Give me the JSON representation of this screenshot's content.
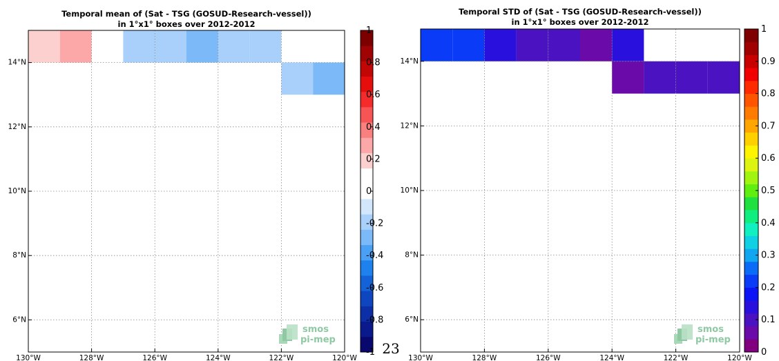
{
  "page_number": "23",
  "logo": {
    "line1": "smos",
    "line2": "pi-mep"
  },
  "chart_data": [
    {
      "type": "heatmap",
      "title_line1": "Temporal mean of (Sat - TSG (GOSUD-Research-vessel))",
      "title_line2": "in 1°x1° boxes over 2012-2012",
      "xlim": [
        -130,
        -120
      ],
      "ylim": [
        5,
        15
      ],
      "grid": true,
      "xticks": [
        {
          "value": -130,
          "label": "130°W"
        },
        {
          "value": -128,
          "label": "128°W"
        },
        {
          "value": -126,
          "label": "126°W"
        },
        {
          "value": -124,
          "label": "124°W"
        },
        {
          "value": -122,
          "label": "122°W"
        },
        {
          "value": -120,
          "label": "120°W"
        }
      ],
      "yticks": [
        {
          "value": 6,
          "label": "6°N"
        },
        {
          "value": 8,
          "label": "8°N"
        },
        {
          "value": 10,
          "label": "10°N"
        },
        {
          "value": 12,
          "label": "12°N"
        },
        {
          "value": 14,
          "label": "14°N"
        }
      ],
      "cells": [
        {
          "lon": -130,
          "lat": 14,
          "value": 0.15
        },
        {
          "lon": -129,
          "lat": 14,
          "value": 0.25
        },
        {
          "lon": -127,
          "lat": 14,
          "value": -0.15
        },
        {
          "lon": -126,
          "lat": 14,
          "value": -0.15
        },
        {
          "lon": -125,
          "lat": 14,
          "value": -0.25
        },
        {
          "lon": -124,
          "lat": 14,
          "value": -0.15
        },
        {
          "lon": -123,
          "lat": 14,
          "value": -0.15
        },
        {
          "lon": -122,
          "lat": 13,
          "value": -0.15
        },
        {
          "lon": -121,
          "lat": 13,
          "value": -0.25
        }
      ],
      "colorbar": {
        "range": [
          -1,
          1
        ],
        "ticks": [
          "-1",
          "-0.8",
          "-0.6",
          "-0.4",
          "-0.2",
          "0",
          "0.2",
          "0.4",
          "0.6",
          "0.8",
          "1"
        ],
        "levels": [
          "#08086e",
          "#0a1a8c",
          "#0c2fa8",
          "#0e46c0",
          "#1462d8",
          "#1e82ee",
          "#4aa0f5",
          "#7bb9f8",
          "#a9d0fb",
          "#d2e6fc",
          "#ffffff",
          "#ffffff",
          "#fdd0d0",
          "#fca8a8",
          "#fa7f7f",
          "#f75555",
          "#f52a2a",
          "#e60d0d",
          "#c20606",
          "#a00303",
          "#7d0000"
        ]
      }
    },
    {
      "type": "heatmap",
      "title_line1": "Temporal STD of (Sat - TSG (GOSUD-Research-vessel))",
      "title_line2": "in 1°x1° boxes over 2012-2012",
      "xlim": [
        -130,
        -120
      ],
      "ylim": [
        5,
        15
      ],
      "grid": true,
      "xticks": [
        {
          "value": -130,
          "label": "130°W"
        },
        {
          "value": -128,
          "label": "128°W"
        },
        {
          "value": -126,
          "label": "126°W"
        },
        {
          "value": -124,
          "label": "124°W"
        },
        {
          "value": -122,
          "label": "122°W"
        },
        {
          "value": -120,
          "label": "120°W"
        }
      ],
      "yticks": [
        {
          "value": 6,
          "label": "6°N"
        },
        {
          "value": 8,
          "label": "8°N"
        },
        {
          "value": 10,
          "label": "10°N"
        },
        {
          "value": 12,
          "label": "12°N"
        },
        {
          "value": 14,
          "label": "14°N"
        }
      ],
      "cells": [
        {
          "lon": -130,
          "lat": 14,
          "value": 0.2
        },
        {
          "lon": -129,
          "lat": 14,
          "value": 0.2
        },
        {
          "lon": -128,
          "lat": 14,
          "value": 0.13
        },
        {
          "lon": -127,
          "lat": 14,
          "value": 0.11
        },
        {
          "lon": -126,
          "lat": 14,
          "value": 0.11
        },
        {
          "lon": -125,
          "lat": 14,
          "value": 0.07
        },
        {
          "lon": -124,
          "lat": 14,
          "value": 0.13
        },
        {
          "lon": -124,
          "lat": 13,
          "value": 0.07
        },
        {
          "lon": -123,
          "lat": 13,
          "value": 0.11
        },
        {
          "lon": -122,
          "lat": 13,
          "value": 0.11
        },
        {
          "lon": -121,
          "lat": 13,
          "value": 0.11
        }
      ],
      "colorbar": {
        "range": [
          0,
          1
        ],
        "ticks": [
          "0",
          "0.1",
          "0.2",
          "0.3",
          "0.4",
          "0.5",
          "0.6",
          "0.7",
          "0.8",
          "0.9",
          "1"
        ],
        "levels": [
          "#800080",
          "#6a0aa8",
          "#4a12c0",
          "#2a10dd",
          "#0a14f5",
          "#0a3cf8",
          "#0a6cf6",
          "#10a6f0",
          "#10d0e4",
          "#10f0c0",
          "#10ee80",
          "#20e040",
          "#60ee10",
          "#a0f410",
          "#dcf410",
          "#fff400",
          "#ffd000",
          "#ffa600",
          "#ff7c00",
          "#ff5400",
          "#ff2a00",
          "#f00000",
          "#c80000",
          "#a00000",
          "#800000"
        ]
      }
    }
  ]
}
